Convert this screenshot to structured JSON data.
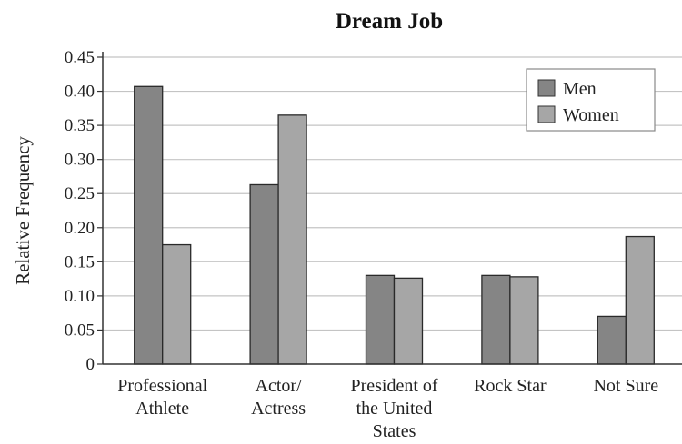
{
  "chart_data": {
    "type": "bar",
    "title": "Dream Job",
    "xlabel": "",
    "ylabel": "Relative Frequency",
    "ylim": [
      0,
      0.45
    ],
    "yticks": [
      "0",
      "0.05",
      "0.10",
      "0.15",
      "0.20",
      "0.25",
      "0.30",
      "0.35",
      "0.40",
      "0.45"
    ],
    "categories": [
      [
        "Professional",
        "Athlete"
      ],
      [
        "Actor/",
        "Actress"
      ],
      [
        "President of",
        "the United",
        "States"
      ],
      [
        "Rock Star"
      ],
      [
        "Not Sure"
      ]
    ],
    "series": [
      {
        "name": "Men",
        "color": "#858585",
        "values": [
          0.407,
          0.263,
          0.13,
          0.13,
          0.07
        ]
      },
      {
        "name": "Women",
        "color": "#a6a6a6",
        "values": [
          0.175,
          0.365,
          0.126,
          0.128,
          0.187
        ]
      }
    ],
    "grid": true,
    "legend": "top-right"
  }
}
